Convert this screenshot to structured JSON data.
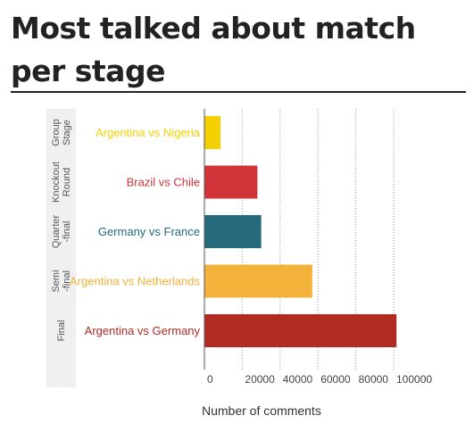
{
  "title": "Most talked about match per stage",
  "chart_data": {
    "type": "bar",
    "orientation": "horizontal",
    "title": "Most talked about match per stage",
    "xlabel": "Number of comments",
    "ylabel": "",
    "xlim": [
      0,
      100000
    ],
    "xticks": [
      0,
      20000,
      40000,
      60000,
      80000,
      100000
    ],
    "grid": "vertical-dotted",
    "stages": [
      "Group Stage",
      "Knockout Round",
      "Quarter -final",
      "Semi -final",
      "Final"
    ],
    "categories": [
      "Argentina vs Nigeria",
      "Brazil vs Chile",
      "Germany vs France",
      "Argentina vs Netherlands",
      "Argentina vs Germany"
    ],
    "values": [
      8500,
      28000,
      30000,
      57000,
      101500
    ],
    "colors": [
      "#f5d000",
      "#d13438",
      "#246a7a",
      "#f3b23a",
      "#b02c23"
    ]
  }
}
